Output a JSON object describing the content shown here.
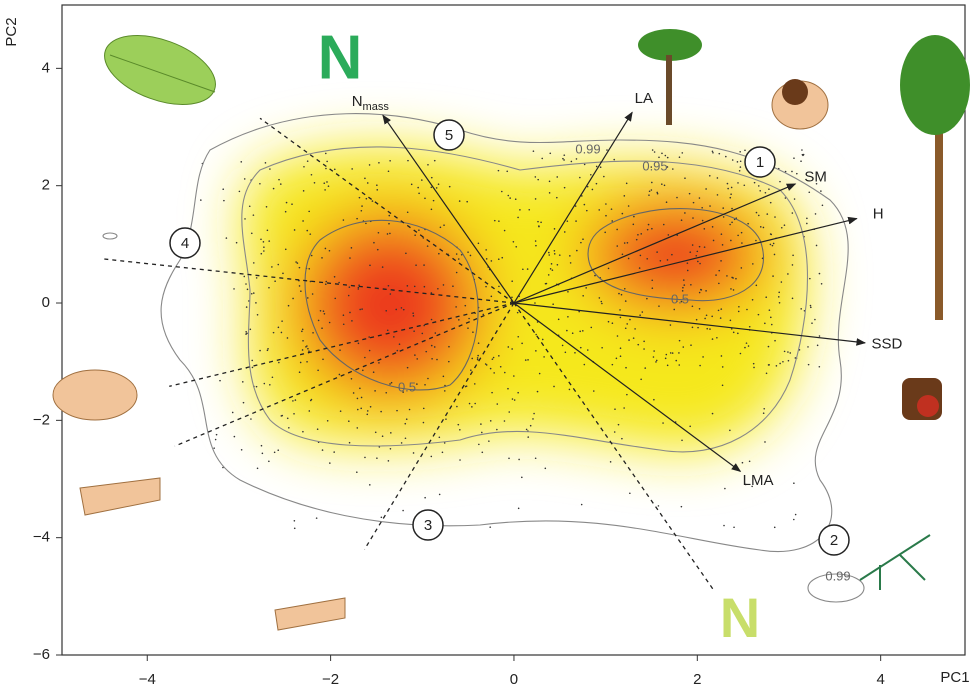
{
  "chart_data": {
    "type": "biplot",
    "x_label": "PC1",
    "y_label": "PC2",
    "xlim": [
      -4.93,
      4.92
    ],
    "ylim": [
      -6,
      5.08
    ],
    "xticks": [
      {
        "value": -4,
        "label": "−4"
      },
      {
        "value": -2,
        "label": "−2"
      },
      0,
      2,
      4
    ],
    "yticks": [
      {
        "value": -6,
        "label": "−6"
      },
      {
        "value": -4,
        "label": "−4"
      },
      {
        "value": -2,
        "label": "−2"
      },
      0,
      2,
      4
    ],
    "arrows": [
      {
        "name": "N",
        "sub": "mass",
        "x": -1.43,
        "y": 3.2
      },
      {
        "name": "LA",
        "x": 1.29,
        "y": 3.25
      },
      {
        "name": "SM",
        "x": 3.07,
        "y": 2.03
      },
      {
        "name": "H",
        "x": 3.74,
        "y": 1.44
      },
      {
        "name": "SSD",
        "x": 3.83,
        "y": -0.68
      },
      {
        "name": "LMA",
        "x": 2.47,
        "y": -2.87
      }
    ],
    "dashed_lines": [
      {
        "x": -2.77,
        "y": 3.15
      },
      {
        "x": -4.47,
        "y": 0.75
      },
      {
        "x": -3.76,
        "y": -1.42
      },
      {
        "x": -3.7,
        "y": -2.44
      },
      {
        "x": -1.63,
        "y": -4.2
      },
      {
        "x": 2.19,
        "y": -4.92
      }
    ],
    "contour_labels": [
      0.99,
      0.95,
      0.5,
      0.5,
      0.99
    ],
    "circled_numbers": [
      "1",
      "2",
      "3",
      "4",
      "5"
    ],
    "nitrogen_icons": [
      "N",
      "N"
    ],
    "arrow_color": "#222222",
    "dash_color": "#222222"
  }
}
